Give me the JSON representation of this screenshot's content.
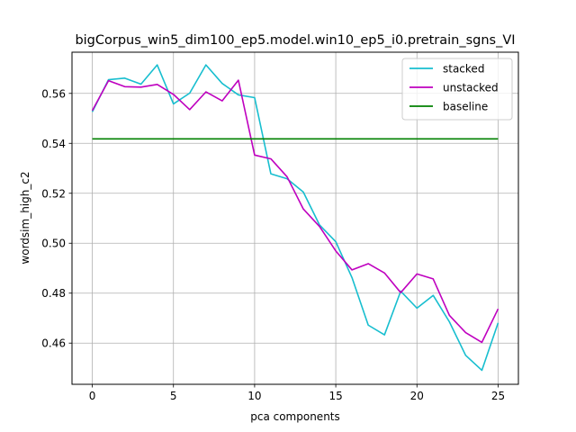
{
  "chart_data": {
    "type": "line",
    "title": "bigCorpus_win5_dim100_ep5.model.win10_ep5_i0.pretrain_sgns_VI",
    "xlabel": "pca components",
    "ylabel": "wordsim_high_c2",
    "xlim": [
      -1.25,
      26.25
    ],
    "ylim": [
      0.4435,
      0.5765
    ],
    "xticks": [
      0,
      5,
      10,
      15,
      20,
      25
    ],
    "yticks": [
      0.46,
      0.48,
      0.5,
      0.52,
      0.54,
      0.56
    ],
    "ytick_labels": [
      "0.46",
      "0.48",
      "0.50",
      "0.52",
      "0.54",
      "0.56"
    ],
    "grid": true,
    "legend_position": "top-right",
    "x": [
      0,
      1,
      2,
      3,
      4,
      5,
      6,
      7,
      8,
      9,
      10,
      11,
      12,
      13,
      14,
      15,
      16,
      17,
      18,
      19,
      20,
      21,
      22,
      23,
      24,
      25
    ],
    "series": [
      {
        "name": "stacked",
        "color": "#17becf",
        "values": [
          0.5526,
          0.5655,
          0.5661,
          0.5637,
          0.5714,
          0.5558,
          0.5601,
          0.5714,
          0.564,
          0.5594,
          0.5583,
          0.5278,
          0.5258,
          0.5205,
          0.5073,
          0.5006,
          0.4862,
          0.4672,
          0.4633,
          0.4808,
          0.474,
          0.4791,
          0.4685,
          0.4551,
          0.4491,
          0.4681
        ]
      },
      {
        "name": "unstacked",
        "color": "#bf00bf",
        "values": [
          0.5531,
          0.5651,
          0.5627,
          0.5625,
          0.5636,
          0.5596,
          0.5535,
          0.5606,
          0.557,
          0.5653,
          0.5353,
          0.5338,
          0.5266,
          0.5137,
          0.5067,
          0.4969,
          0.4893,
          0.4918,
          0.4881,
          0.4802,
          0.4877,
          0.4857,
          0.4711,
          0.4642,
          0.4603,
          0.4737
        ]
      },
      {
        "name": "baseline",
        "color": "#008000",
        "values": [
          0.5418,
          0.5418,
          0.5418,
          0.5418,
          0.5418,
          0.5418,
          0.5418,
          0.5418,
          0.5418,
          0.5418,
          0.5418,
          0.5418,
          0.5418,
          0.5418,
          0.5418,
          0.5418,
          0.5418,
          0.5418,
          0.5418,
          0.5418,
          0.5418,
          0.5418,
          0.5418,
          0.5418,
          0.5418,
          0.5418
        ]
      }
    ]
  }
}
